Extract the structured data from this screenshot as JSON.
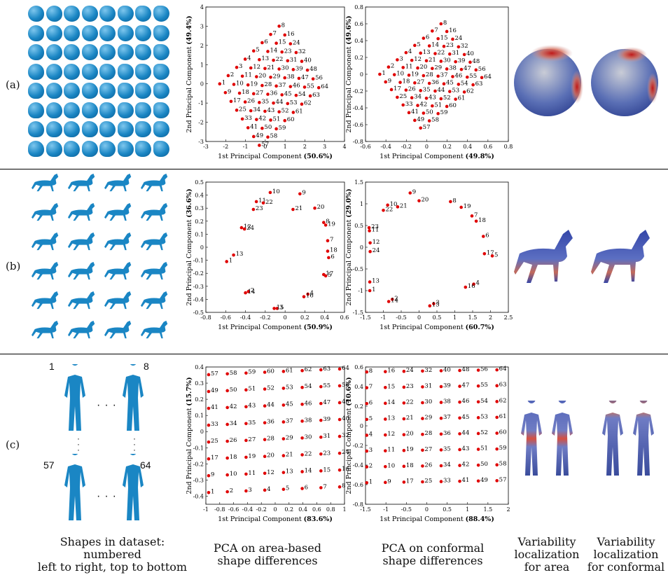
{
  "row_labels": [
    "(a)",
    "(b)",
    "(c)"
  ],
  "human_numbers": [
    "1",
    "8",
    "57",
    "64"
  ],
  "captions": {
    "dataset": [
      "Shapes in dataset:",
      "numbered",
      "left to right, top to bottom"
    ],
    "pca_area": [
      "PCA on area-based",
      "shape differences"
    ],
    "pca_conformal": [
      "PCA on conformal",
      "shape differences"
    ],
    "var_area": [
      "Variability",
      "localization",
      "for area"
    ],
    "var_conformal": [
      "Variability",
      "localization",
      "for conformal"
    ]
  },
  "chart_data": [
    {
      "id": "a-area",
      "type": "scatter",
      "xlabel": "1st Principal Component",
      "xpct": "(50.6%)",
      "ylabel": "2nd Principal Component",
      "ypct": "(49.4%)",
      "xlim": [
        -3,
        4
      ],
      "ylim": [
        -3,
        4
      ],
      "xticks": [
        "-3",
        "-2",
        "-1",
        "0",
        "1",
        "2",
        "3",
        "4"
      ],
      "yticks": [
        "-3",
        "-2",
        "-1",
        "0",
        "1",
        "2",
        "3",
        "4"
      ],
      "point_gen": "diamond8",
      "scale": 1.0
    },
    {
      "id": "a-conf",
      "type": "scatter",
      "xlabel": "1st Principal Component",
      "xpct": "(49.8%)",
      "ylabel": "2nd Principal Component",
      "ypct": "(49.6%)",
      "xlim": [
        -0.6,
        0.8
      ],
      "ylim": [
        -0.8,
        0.8
      ],
      "xticks": [
        "-0.6",
        "-0.4",
        "-0.2",
        "0",
        "0.2",
        "0.4",
        "0.6",
        "0.8"
      ],
      "yticks": [
        "-0.8",
        "-0.6",
        "-0.4",
        "-0.2",
        "0",
        "0.2",
        "0.4",
        "0.6",
        "0.8"
      ],
      "point_gen": "diamond8",
      "scale": 0.2
    },
    {
      "id": "b-area",
      "type": "scatter",
      "xlabel": "1st Principal Component",
      "xpct": "(50.9%)",
      "ylabel": "2nd Principal Component",
      "ypct": "(36.6%)",
      "xlim": [
        -0.8,
        0.6
      ],
      "ylim": [
        -0.5,
        0.5
      ],
      "xticks": [
        "-0.8",
        "-0.6",
        "-0.4",
        "-0.2",
        "0",
        "0.2",
        "0.4",
        "0.6"
      ],
      "yticks": [
        "-0.5",
        "-0.4",
        "-0.3",
        "-0.2",
        "-0.1",
        "0",
        "0.1",
        "0.2",
        "0.3",
        "0.4",
        "0.5"
      ],
      "points": [
        {
          "n": "1",
          "x": -0.59,
          "y": -0.11
        },
        {
          "n": "2",
          "x": -0.37,
          "y": -0.34
        },
        {
          "n": "3",
          "x": -0.08,
          "y": -0.47
        },
        {
          "n": "4",
          "x": 0.23,
          "y": -0.36
        },
        {
          "n": "5",
          "x": 0.41,
          "y": -0.22
        },
        {
          "n": "6",
          "x": 0.44,
          "y": -0.08
        },
        {
          "n": "7",
          "x": 0.43,
          "y": 0.05
        },
        {
          "n": "8",
          "x": 0.39,
          "y": 0.19
        },
        {
          "n": "9",
          "x": 0.15,
          "y": 0.41
        },
        {
          "n": "10",
          "x": -0.15,
          "y": 0.42
        },
        {
          "n": "11",
          "x": -0.29,
          "y": 0.35
        },
        {
          "n": "12",
          "x": -0.44,
          "y": 0.15
        },
        {
          "n": "13",
          "x": -0.52,
          "y": -0.06
        },
        {
          "n": "14",
          "x": -0.4,
          "y": -0.35
        },
        {
          "n": "15",
          "x": -0.11,
          "y": -0.47
        },
        {
          "n": "16",
          "x": 0.19,
          "y": -0.38
        },
        {
          "n": "17",
          "x": 0.39,
          "y": -0.21
        },
        {
          "n": "18",
          "x": 0.43,
          "y": -0.03
        },
        {
          "n": "19",
          "x": 0.41,
          "y": 0.17
        },
        {
          "n": "20",
          "x": 0.3,
          "y": 0.3
        },
        {
          "n": "21",
          "x": 0.08,
          "y": 0.29
        },
        {
          "n": "22",
          "x": -0.22,
          "y": 0.34
        },
        {
          "n": "23",
          "x": -0.32,
          "y": 0.29
        },
        {
          "n": "24",
          "x": -0.41,
          "y": 0.14
        }
      ]
    },
    {
      "id": "b-conf",
      "type": "scatter",
      "xlabel": "1st Principal Component",
      "xpct": "(60.7%)",
      "ylabel": "2nd Principal Component",
      "ypct": "(29.0%)",
      "xlim": [
        -1.5,
        2.5
      ],
      "ylim": [
        -1.5,
        1.5
      ],
      "xticks": [
        "-1.5",
        "-1",
        "-0.5",
        "0",
        "0.5",
        "1",
        "1.5",
        "2",
        "2.5"
      ],
      "yticks": [
        "-1.5",
        "-1",
        "-0.5",
        "0",
        "0.5",
        "1",
        "1.5"
      ],
      "points": [
        {
          "n": "1",
          "x": -1.38,
          "y": -1.0
        },
        {
          "n": "2",
          "x": -0.75,
          "y": -1.2
        },
        {
          "n": "3",
          "x": 0.41,
          "y": -1.3
        },
        {
          "n": "4",
          "x": 1.53,
          "y": -0.85
        },
        {
          "n": "5",
          "x": 2.05,
          "y": -0.2
        },
        {
          "n": "6",
          "x": 1.8,
          "y": 0.25
        },
        {
          "n": "7",
          "x": 1.48,
          "y": 0.72
        },
        {
          "n": "8",
          "x": 0.88,
          "y": 1.05
        },
        {
          "n": "9",
          "x": -0.25,
          "y": 1.25
        },
        {
          "n": "10",
          "x": -0.88,
          "y": 0.97
        },
        {
          "n": "11",
          "x": -1.39,
          "y": 0.38
        },
        {
          "n": "12",
          "x": -1.37,
          "y": 0.1
        },
        {
          "n": "13",
          "x": -1.38,
          "y": -0.8
        },
        {
          "n": "14",
          "x": -0.85,
          "y": -1.25
        },
        {
          "n": "15",
          "x": 0.3,
          "y": -1.35
        },
        {
          "n": "16",
          "x": 1.3,
          "y": -0.92
        },
        {
          "n": "17",
          "x": 1.83,
          "y": -0.15
        },
        {
          "n": "18",
          "x": 1.6,
          "y": 0.6
        },
        {
          "n": "19",
          "x": 1.18,
          "y": 0.92
        },
        {
          "n": "20",
          "x": 0.0,
          "y": 1.07
        },
        {
          "n": "21",
          "x": -0.6,
          "y": 0.93
        },
        {
          "n": "22",
          "x": -1.0,
          "y": 0.85
        },
        {
          "n": "23",
          "x": -1.4,
          "y": 0.45
        },
        {
          "n": "24",
          "x": -1.37,
          "y": -0.1
        }
      ]
    },
    {
      "id": "c-area",
      "type": "scatter",
      "xlabel": "1st Principal Component",
      "xpct": "(83.6%)",
      "ylabel": "2nd Principal Component",
      "ypct": "(15.7%)",
      "xlim": [
        -1,
        1
      ],
      "ylim": [
        -0.45,
        0.4
      ],
      "xticks": [
        "-1",
        "-0.8",
        "-0.6",
        "-0.4",
        "-0.2",
        "0",
        "0.2",
        "0.4",
        "0.6",
        "0.8",
        "1"
      ],
      "yticks": [
        "-0.4",
        "-0.3",
        "-0.2",
        "-0.1",
        "0",
        "0.1",
        "0.2",
        "0.3",
        "0.4"
      ],
      "point_gen": "grid8",
      "gx": [
        -0.96,
        0.93
      ],
      "gy": [
        -0.36,
        0.37
      ],
      "skew": 0.05
    },
    {
      "id": "c-conf",
      "type": "scatter",
      "xlabel": "1st Principal Component",
      "xpct": "(88.4%)",
      "ylabel": "2nd Principal Component",
      "ypct": "(10.6%)",
      "xlim": [
        -1.5,
        2
      ],
      "ylim": [
        -0.8,
        0.6
      ],
      "xticks": [
        "-1.5",
        "-1",
        "-0.5",
        "0",
        "0.5",
        "1",
        "1.5",
        "2"
      ],
      "yticks": [
        "-0.8",
        "-0.6",
        "-0.4",
        "-0.2",
        "0",
        "0.2",
        "0.4",
        "0.6"
      ],
      "point_gen": "grid8c",
      "gx": [
        -1.47,
        1.72
      ],
      "gy": [
        -0.57,
        0.56
      ],
      "skew": 0.03
    }
  ],
  "colors": {
    "point": "#e00000",
    "shape": "#1a86c4"
  }
}
